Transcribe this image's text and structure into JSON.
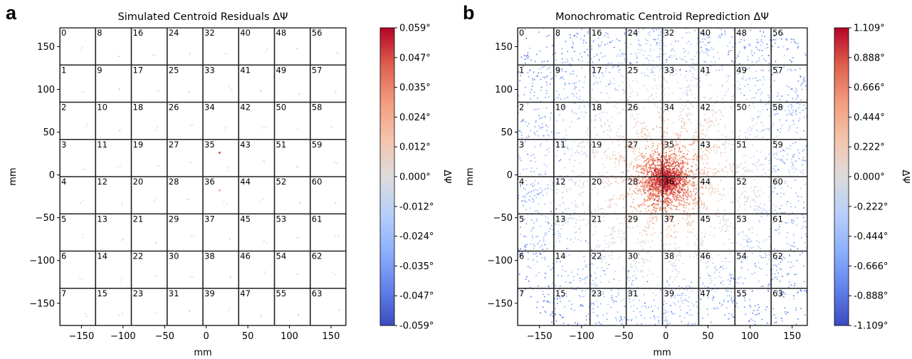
{
  "chart_data": [
    {
      "panel": "a",
      "type": "scatter",
      "title": "Simulated Centroid Residuals ΔΨ",
      "xlabel": "mm",
      "ylabel": "mm",
      "xlim": [
        -176,
        168
      ],
      "ylim": [
        -176,
        172
      ],
      "xticks": [
        -150,
        -100,
        -50,
        0,
        50,
        100,
        150
      ],
      "yticks": [
        -150,
        -100,
        -50,
        0,
        50,
        100,
        150
      ],
      "grid": false,
      "detector_labels": [
        "0",
        "1",
        "2",
        "3",
        "4",
        "5",
        "6",
        "7",
        "8",
        "9",
        "10",
        "11",
        "12",
        "13",
        "14",
        "15",
        "16",
        "17",
        "18",
        "19",
        "20",
        "21",
        "22",
        "23",
        "24",
        "25",
        "26",
        "27",
        "28",
        "29",
        "30",
        "31",
        "32",
        "33",
        "34",
        "35",
        "36",
        "37",
        "38",
        "39",
        "40",
        "41",
        "42",
        "43",
        "44",
        "45",
        "46",
        "47",
        "48",
        "49",
        "50",
        "51",
        "52",
        "53",
        "54",
        "55",
        "56",
        "57",
        "58",
        "59",
        "60",
        "61",
        "62",
        "63"
      ],
      "colorbar": {
        "label": "ΔΨ",
        "colormap": "coolwarm",
        "min": -0.059,
        "max": 0.059,
        "tick_labels": [
          "0.059°",
          "0.047°",
          "0.035°",
          "0.024°",
          "0.012°",
          "0.000°",
          "-0.012°",
          "-0.024°",
          "-0.035°",
          "-0.047°",
          "-0.059°"
        ]
      },
      "highlight_points": [
        {
          "x": 16,
          "y": 26,
          "value": 0.045
        },
        {
          "x": 16,
          "y": -18,
          "value": 0.02
        }
      ]
    },
    {
      "panel": "b",
      "type": "scatter",
      "title": "Monochromatic Centroid Reprediction ΔΨ",
      "xlabel": "mm",
      "ylabel": "mm",
      "xlim": [
        -176,
        168
      ],
      "ylim": [
        -176,
        172
      ],
      "xticks": [
        -150,
        -100,
        -50,
        0,
        50,
        100,
        150
      ],
      "yticks": [
        -150,
        -100,
        -50,
        0,
        50,
        100,
        150
      ],
      "grid": false,
      "detector_labels": [
        "0",
        "1",
        "2",
        "3",
        "4",
        "5",
        "6",
        "7",
        "8",
        "9",
        "10",
        "11",
        "12",
        "13",
        "14",
        "15",
        "16",
        "17",
        "18",
        "19",
        "20",
        "21",
        "22",
        "23",
        "24",
        "25",
        "26",
        "27",
        "28",
        "29",
        "30",
        "31",
        "32",
        "33",
        "34",
        "35",
        "36",
        "37",
        "38",
        "39",
        "40",
        "41",
        "42",
        "43",
        "44",
        "45",
        "46",
        "47",
        "48",
        "49",
        "50",
        "51",
        "52",
        "53",
        "54",
        "55",
        "56",
        "57",
        "58",
        "59",
        "60",
        "61",
        "62",
        "63"
      ],
      "colorbar": {
        "label": "ΔΨ",
        "colormap": "coolwarm",
        "min": -1.109,
        "max": 1.109,
        "tick_labels": [
          "1.109°",
          "0.888°",
          "0.666°",
          "0.444°",
          "0.222°",
          "0.000°",
          "-0.222°",
          "-0.444°",
          "-0.666°",
          "-0.888°",
          "-1.109°"
        ]
      },
      "rays": 16,
      "center": [
        0,
        0
      ]
    }
  ],
  "colors": {
    "cmap_low": "#3b4cc0",
    "cmap_mid": "#dddddd",
    "cmap_high": "#b40426"
  }
}
